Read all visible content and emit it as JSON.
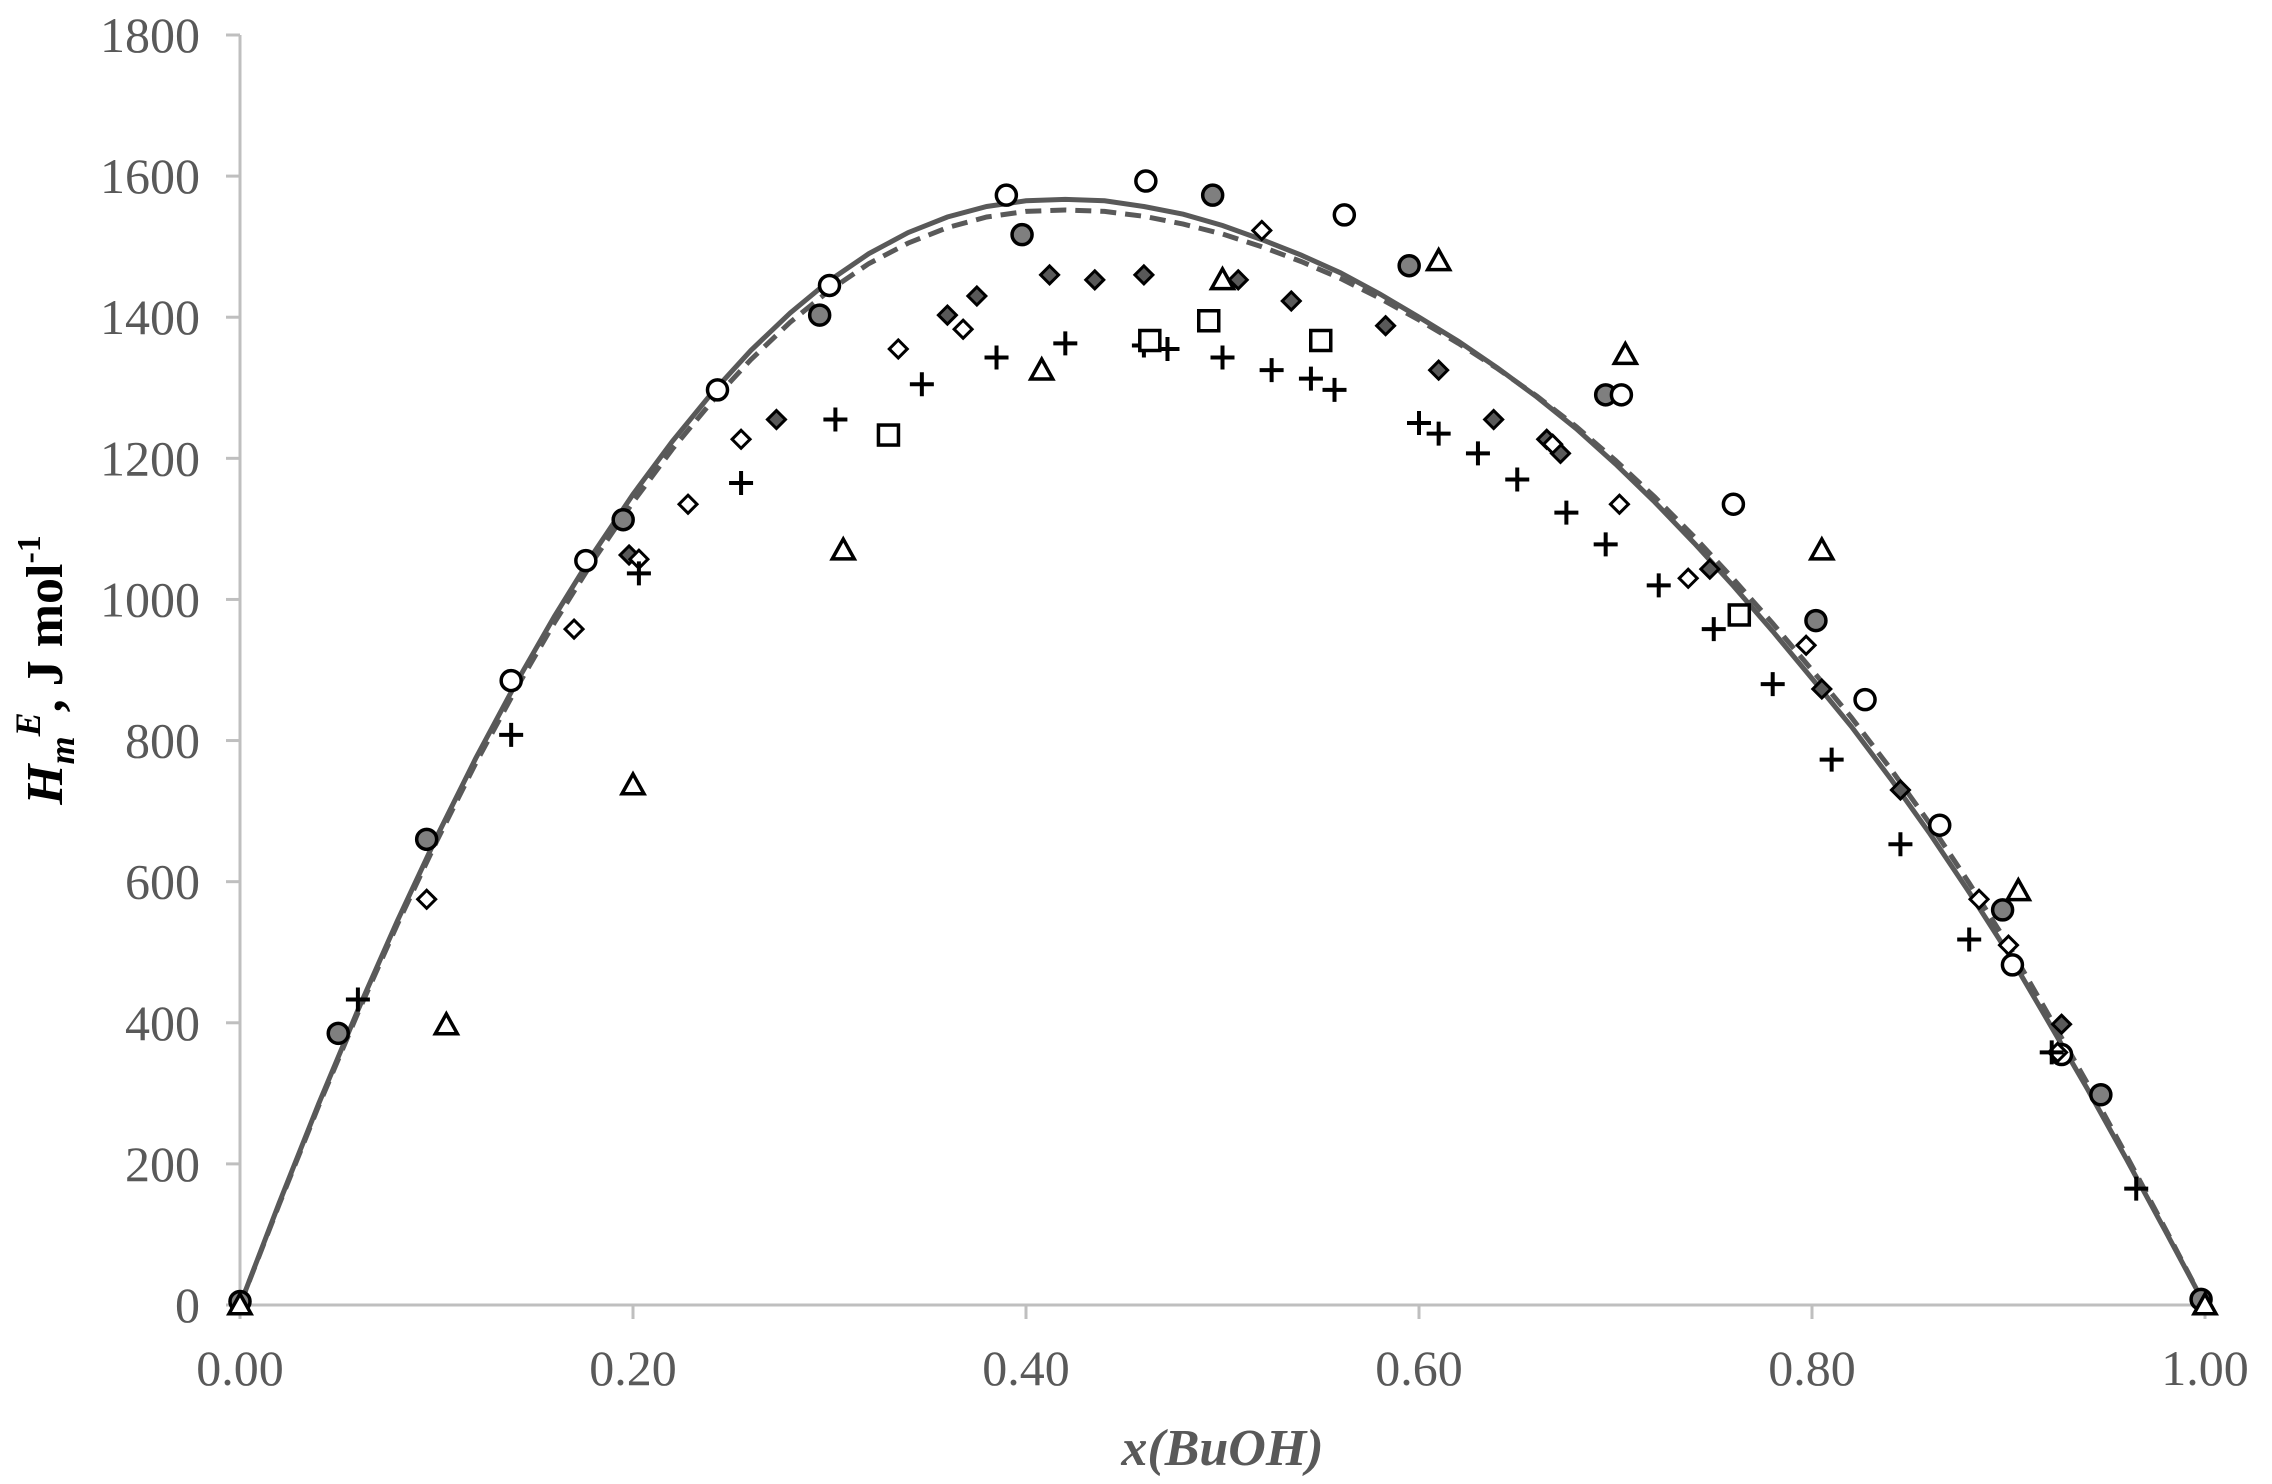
{
  "chart_data": {
    "type": "scatter",
    "xlabel": "x(BuOH)",
    "ylabel": {
      "main": "H",
      "sub": "m",
      "sup": "E",
      "unit": ", J mol",
      "unit_sup": "-1"
    },
    "xlim": [
      0,
      1
    ],
    "ylim": [
      0,
      1800
    ],
    "xticks": [
      "0.00",
      "0.20",
      "0.40",
      "0.60",
      "0.80",
      "1.00"
    ],
    "yticks": [
      "0",
      "200",
      "400",
      "600",
      "800",
      "1000",
      "1200",
      "1400",
      "1600",
      "1800"
    ],
    "grid": false,
    "legend": "none",
    "colors": {
      "axis": "#bfbfbf",
      "curve": "#595959",
      "fill_dark": "#7f7f7f",
      "fill_diamond": "#595959",
      "stroke": "#000000"
    },
    "series": [
      {
        "marker": "circle-filled",
        "points": [
          [
            0.0,
            5
          ],
          [
            0.05,
            385
          ],
          [
            0.095,
            660
          ],
          [
            0.195,
            1113
          ],
          [
            0.295,
            1403
          ],
          [
            0.398,
            1517
          ],
          [
            0.495,
            1573
          ],
          [
            0.595,
            1473
          ],
          [
            0.695,
            1290
          ],
          [
            0.802,
            970
          ],
          [
            0.897,
            560
          ],
          [
            0.947,
            298
          ],
          [
            0.998,
            8
          ]
        ]
      },
      {
        "marker": "circle-open",
        "points": [
          [
            0.138,
            885
          ],
          [
            0.176,
            1055
          ],
          [
            0.243,
            1297
          ],
          [
            0.3,
            1445
          ],
          [
            0.39,
            1573
          ],
          [
            0.461,
            1593
          ],
          [
            0.562,
            1545
          ],
          [
            0.703,
            1290
          ],
          [
            0.76,
            1135
          ],
          [
            0.827,
            858
          ],
          [
            0.865,
            680
          ],
          [
            0.902,
            482
          ],
          [
            0.927,
            355
          ]
        ]
      },
      {
        "marker": "diamond-filled",
        "points": [
          [
            0.198,
            1063
          ],
          [
            0.273,
            1255
          ],
          [
            0.36,
            1403
          ],
          [
            0.375,
            1430
          ],
          [
            0.412,
            1460
          ],
          [
            0.435,
            1453
          ],
          [
            0.46,
            1460
          ],
          [
            0.508,
            1453
          ],
          [
            0.535,
            1423
          ],
          [
            0.583,
            1388
          ],
          [
            0.61,
            1325
          ],
          [
            0.638,
            1255
          ],
          [
            0.665,
            1227
          ],
          [
            0.672,
            1207
          ],
          [
            0.748,
            1043
          ],
          [
            0.805,
            873
          ],
          [
            0.845,
            730
          ],
          [
            0.927,
            398
          ]
        ]
      },
      {
        "marker": "diamond-open",
        "points": [
          [
            0.095,
            575
          ],
          [
            0.17,
            958
          ],
          [
            0.203,
            1057
          ],
          [
            0.228,
            1135
          ],
          [
            0.255,
            1227
          ],
          [
            0.335,
            1355
          ],
          [
            0.368,
            1383
          ],
          [
            0.52,
            1523
          ],
          [
            0.668,
            1220
          ],
          [
            0.702,
            1135
          ],
          [
            0.737,
            1030
          ],
          [
            0.797,
            935
          ],
          [
            0.885,
            575
          ],
          [
            0.9,
            510
          ],
          [
            0.925,
            358
          ]
        ]
      },
      {
        "marker": "plus",
        "points": [
          [
            0.06,
            433
          ],
          [
            0.138,
            808
          ],
          [
            0.203,
            1037
          ],
          [
            0.255,
            1165
          ],
          [
            0.303,
            1255
          ],
          [
            0.347,
            1305
          ],
          [
            0.385,
            1343
          ],
          [
            0.42,
            1363
          ],
          [
            0.46,
            1360
          ],
          [
            0.472,
            1355
          ],
          [
            0.5,
            1343
          ],
          [
            0.525,
            1325
          ],
          [
            0.545,
            1313
          ],
          [
            0.557,
            1297
          ],
          [
            0.6,
            1250
          ],
          [
            0.61,
            1235
          ],
          [
            0.63,
            1207
          ],
          [
            0.65,
            1170
          ],
          [
            0.675,
            1123
          ],
          [
            0.695,
            1078
          ],
          [
            0.722,
            1020
          ],
          [
            0.75,
            958
          ],
          [
            0.78,
            880
          ],
          [
            0.81,
            773
          ],
          [
            0.845,
            653
          ],
          [
            0.88,
            518
          ],
          [
            0.922,
            358
          ],
          [
            0.965,
            165
          ]
        ]
      },
      {
        "marker": "square-open",
        "points": [
          [
            0.33,
            1233
          ],
          [
            0.463,
            1367
          ],
          [
            0.493,
            1395
          ],
          [
            0.55,
            1367
          ],
          [
            0.763,
            978
          ]
        ]
      },
      {
        "marker": "triangle-open",
        "points": [
          [
            0.0,
            0
          ],
          [
            0.105,
            397
          ],
          [
            0.2,
            737
          ],
          [
            0.307,
            1070
          ],
          [
            0.408,
            1325
          ],
          [
            0.5,
            1453
          ],
          [
            0.61,
            1480
          ],
          [
            0.705,
            1347
          ],
          [
            0.805,
            1070
          ],
          [
            0.905,
            587
          ],
          [
            1.0,
            0
          ]
        ]
      }
    ],
    "curves": [
      {
        "style": "solid",
        "points": [
          [
            0.0,
            0
          ],
          [
            0.02,
            145
          ],
          [
            0.04,
            285
          ],
          [
            0.06,
            418
          ],
          [
            0.08,
            544
          ],
          [
            0.1,
            663
          ],
          [
            0.12,
            775
          ],
          [
            0.14,
            879
          ],
          [
            0.16,
            976
          ],
          [
            0.18,
            1066
          ],
          [
            0.2,
            1149
          ],
          [
            0.22,
            1224
          ],
          [
            0.24,
            1292
          ],
          [
            0.26,
            1353
          ],
          [
            0.28,
            1406
          ],
          [
            0.3,
            1452
          ],
          [
            0.32,
            1490
          ],
          [
            0.34,
            1520
          ],
          [
            0.36,
            1542
          ],
          [
            0.38,
            1557
          ],
          [
            0.4,
            1565
          ],
          [
            0.42,
            1567
          ],
          [
            0.44,
            1565
          ],
          [
            0.46,
            1557
          ],
          [
            0.48,
            1546
          ],
          [
            0.5,
            1530
          ],
          [
            0.52,
            1510
          ],
          [
            0.54,
            1488
          ],
          [
            0.56,
            1463
          ],
          [
            0.58,
            1433
          ],
          [
            0.6,
            1400
          ],
          [
            0.62,
            1366
          ],
          [
            0.64,
            1328
          ],
          [
            0.66,
            1287
          ],
          [
            0.68,
            1242
          ],
          [
            0.7,
            1192
          ],
          [
            0.72,
            1138
          ],
          [
            0.74,
            1080
          ],
          [
            0.76,
            1019
          ],
          [
            0.78,
            955
          ],
          [
            0.8,
            888
          ],
          [
            0.82,
            820
          ],
          [
            0.84,
            746
          ],
          [
            0.86,
            668
          ],
          [
            0.88,
            585
          ],
          [
            0.9,
            498
          ],
          [
            0.92,
            403
          ],
          [
            0.94,
            307
          ],
          [
            0.96,
            207
          ],
          [
            0.98,
            104
          ],
          [
            1.0,
            0
          ]
        ]
      },
      {
        "style": "dashed",
        "points": [
          [
            0.0,
            0
          ],
          [
            0.02,
            143
          ],
          [
            0.04,
            282
          ],
          [
            0.06,
            414
          ],
          [
            0.08,
            539
          ],
          [
            0.1,
            657
          ],
          [
            0.12,
            768
          ],
          [
            0.14,
            871
          ],
          [
            0.16,
            967
          ],
          [
            0.18,
            1056
          ],
          [
            0.2,
            1138
          ],
          [
            0.22,
            1213
          ],
          [
            0.24,
            1280
          ],
          [
            0.26,
            1340
          ],
          [
            0.28,
            1393
          ],
          [
            0.3,
            1438
          ],
          [
            0.32,
            1476
          ],
          [
            0.34,
            1505
          ],
          [
            0.36,
            1527
          ],
          [
            0.38,
            1542
          ],
          [
            0.4,
            1550
          ],
          [
            0.42,
            1552
          ],
          [
            0.44,
            1550
          ],
          [
            0.46,
            1543
          ],
          [
            0.48,
            1532
          ],
          [
            0.5,
            1518
          ],
          [
            0.52,
            1500
          ],
          [
            0.54,
            1479
          ],
          [
            0.56,
            1455
          ],
          [
            0.58,
            1427
          ],
          [
            0.6,
            1396
          ],
          [
            0.62,
            1363
          ],
          [
            0.64,
            1327
          ],
          [
            0.66,
            1288
          ],
          [
            0.68,
            1245
          ],
          [
            0.7,
            1197
          ],
          [
            0.72,
            1145
          ],
          [
            0.74,
            1089
          ],
          [
            0.76,
            1029
          ],
          [
            0.78,
            966
          ],
          [
            0.8,
            900
          ],
          [
            0.82,
            833
          ],
          [
            0.84,
            760
          ],
          [
            0.86,
            682
          ],
          [
            0.88,
            598
          ],
          [
            0.9,
            510
          ],
          [
            0.92,
            413
          ],
          [
            0.94,
            315
          ],
          [
            0.96,
            212
          ],
          [
            0.98,
            107
          ],
          [
            1.0,
            0
          ]
        ]
      }
    ]
  }
}
